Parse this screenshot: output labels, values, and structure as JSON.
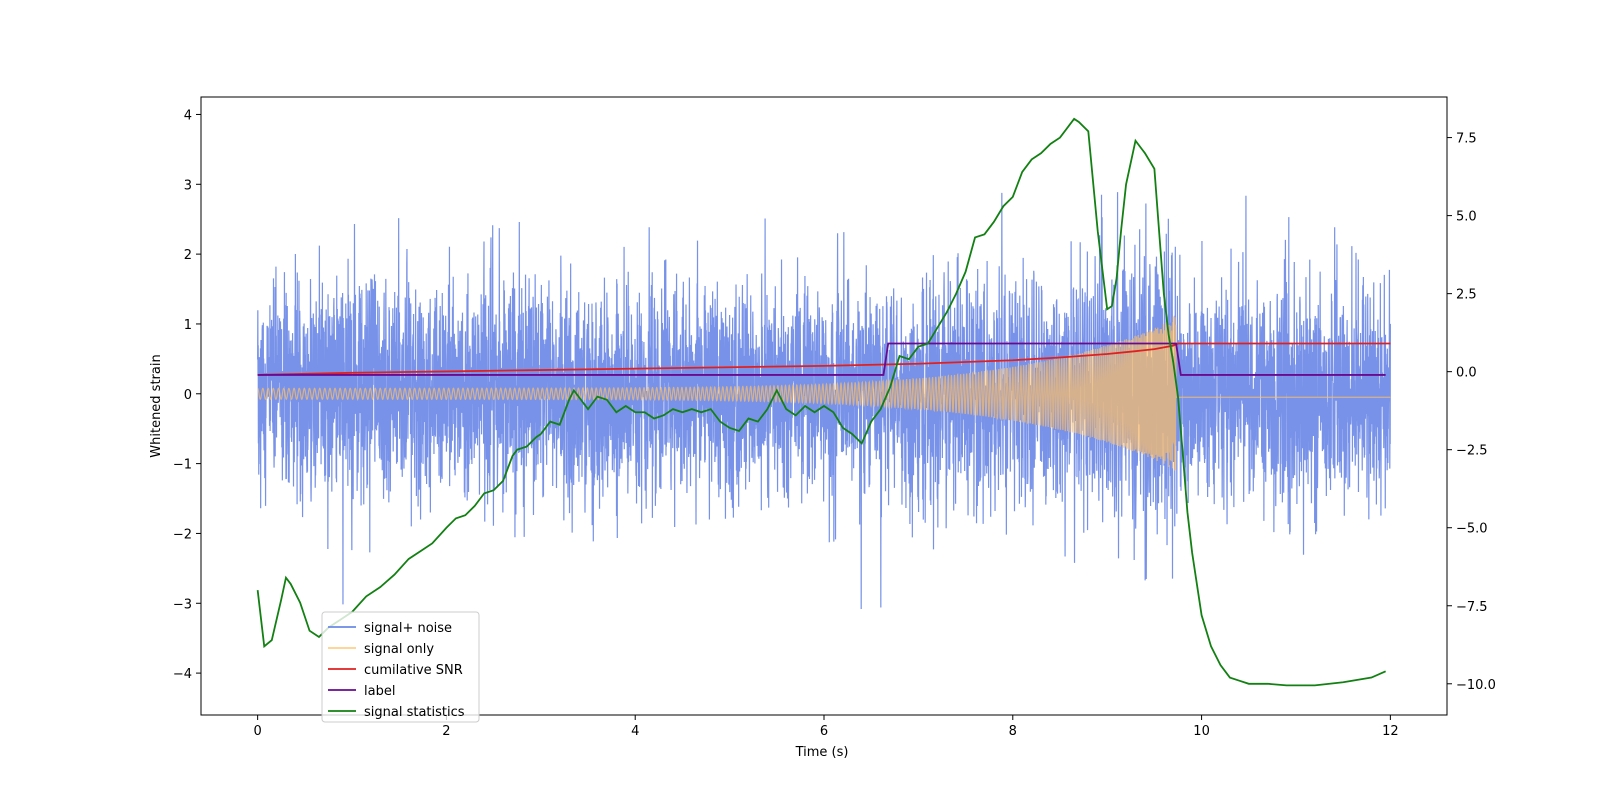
{
  "chart_data": {
    "type": "line",
    "title": "",
    "xlabel": "Time (s)",
    "ylabel": "Whitened strain",
    "xlim": [
      -0.6,
      12.6
    ],
    "ylim": [
      -4.6,
      4.25
    ],
    "y2lim": [
      -11.0,
      8.8
    ],
    "x_ticks": [
      0,
      2,
      4,
      6,
      8,
      10,
      12
    ],
    "y_ticks": [
      -4,
      -3,
      -2,
      -1,
      0,
      1,
      2,
      3,
      4
    ],
    "y2_ticks": [
      -10.0,
      -7.5,
      -5.0,
      -2.5,
      0.0,
      2.5,
      5.0,
      7.5
    ],
    "grid": false,
    "legend_position": "lower-left",
    "series": [
      {
        "name": "signal+ noise",
        "color": "#6b89e6",
        "axis": "left",
        "description": "dense Gaussian noise, std ~0.75, with injected chirp; t 0 to 12 s",
        "noise_std": 0.75,
        "mean": 0.05
      },
      {
        "name": "signal only",
        "color": "#ffbf66",
        "axis": "left",
        "description": "chirp envelope growing from ~0.05 at t=0 to ~1.0 at t=9.73, then flat near 0",
        "chirp_end": 9.73,
        "amplitude_end": 1.0,
        "amplitude_start": 0.05
      },
      {
        "name": "cumilative SNR",
        "color": "#e02020",
        "axis": "left",
        "x": [
          0.0,
          1.0,
          2.0,
          3.0,
          4.0,
          5.0,
          6.0,
          7.0,
          8.0,
          8.5,
          9.0,
          9.3,
          9.5,
          9.7,
          9.75,
          12.0
        ],
        "y": [
          0.27,
          0.3,
          0.32,
          0.34,
          0.36,
          0.38,
          0.4,
          0.43,
          0.48,
          0.52,
          0.57,
          0.61,
          0.64,
          0.69,
          0.72,
          0.72
        ]
      },
      {
        "name": "label",
        "color": "#6a0a8f",
        "axis": "left",
        "x": [
          0.0,
          6.63,
          6.68,
          9.73,
          9.78,
          11.95
        ],
        "y": [
          0.27,
          0.27,
          0.72,
          0.72,
          0.27,
          0.27
        ]
      },
      {
        "name": "signal statistics",
        "color": "#138013",
        "axis": "right",
        "x": [
          0.0,
          0.07,
          0.15,
          0.25,
          0.3,
          0.35,
          0.45,
          0.55,
          0.65,
          0.75,
          0.85,
          0.95,
          1.0,
          1.15,
          1.3,
          1.45,
          1.6,
          1.75,
          1.85,
          2.0,
          2.1,
          2.2,
          2.3,
          2.4,
          2.5,
          2.6,
          2.7,
          2.75,
          2.85,
          2.95,
          3.0,
          3.1,
          3.2,
          3.3,
          3.35,
          3.4,
          3.5,
          3.6,
          3.7,
          3.8,
          3.9,
          4.0,
          4.1,
          4.2,
          4.3,
          4.4,
          4.5,
          4.6,
          4.7,
          4.8,
          4.9,
          5.0,
          5.1,
          5.2,
          5.3,
          5.4,
          5.5,
          5.6,
          5.7,
          5.8,
          5.9,
          6.0,
          6.1,
          6.2,
          6.3,
          6.4,
          6.5,
          6.6,
          6.7,
          6.75,
          6.8,
          6.9,
          7.0,
          7.1,
          7.2,
          7.3,
          7.4,
          7.5,
          7.6,
          7.7,
          7.8,
          7.9,
          8.0,
          8.1,
          8.2,
          8.3,
          8.4,
          8.5,
          8.6,
          8.65,
          8.7,
          8.8,
          8.9,
          9.0,
          9.05,
          9.1,
          9.15,
          9.2,
          9.3,
          9.4,
          9.5,
          9.6,
          9.65,
          9.7,
          9.75,
          9.8,
          9.85,
          9.9,
          10.0,
          10.1,
          10.2,
          10.3,
          10.4,
          10.5,
          10.7,
          10.9,
          11.2,
          11.5,
          11.8,
          11.95
        ],
        "y": [
          -7.0,
          -8.8,
          -8.6,
          -7.3,
          -6.6,
          -6.8,
          -7.4,
          -8.3,
          -8.5,
          -8.2,
          -8.0,
          -7.8,
          -7.7,
          -7.2,
          -6.9,
          -6.5,
          -6.0,
          -5.7,
          -5.5,
          -5.0,
          -4.7,
          -4.6,
          -4.3,
          -3.9,
          -3.8,
          -3.5,
          -2.7,
          -2.5,
          -2.4,
          -2.1,
          -2.0,
          -1.6,
          -1.7,
          -0.9,
          -0.6,
          -0.8,
          -1.2,
          -0.8,
          -0.9,
          -1.3,
          -1.1,
          -1.3,
          -1.3,
          -1.5,
          -1.4,
          -1.2,
          -1.3,
          -1.2,
          -1.3,
          -1.2,
          -1.6,
          -1.8,
          -1.9,
          -1.5,
          -1.6,
          -1.2,
          -0.6,
          -1.2,
          -1.4,
          -1.1,
          -1.3,
          -1.1,
          -1.3,
          -1.8,
          -2.0,
          -2.3,
          -1.6,
          -1.2,
          -0.5,
          0.0,
          0.5,
          0.4,
          0.8,
          0.9,
          1.4,
          1.9,
          2.5,
          3.2,
          4.3,
          4.4,
          4.8,
          5.3,
          5.6,
          6.4,
          6.8,
          7.0,
          7.3,
          7.5,
          7.9,
          8.1,
          8.0,
          7.7,
          4.5,
          2.0,
          2.1,
          3.0,
          4.6,
          6.0,
          7.4,
          7.0,
          6.5,
          2.5,
          1.2,
          0.3,
          -0.8,
          -2.6,
          -4.5,
          -5.8,
          -7.8,
          -8.8,
          -9.4,
          -9.8,
          -9.9,
          -10.0,
          -10.0,
          -10.05,
          -10.05,
          -9.95,
          -9.8,
          -9.6
        ]
      }
    ]
  }
}
